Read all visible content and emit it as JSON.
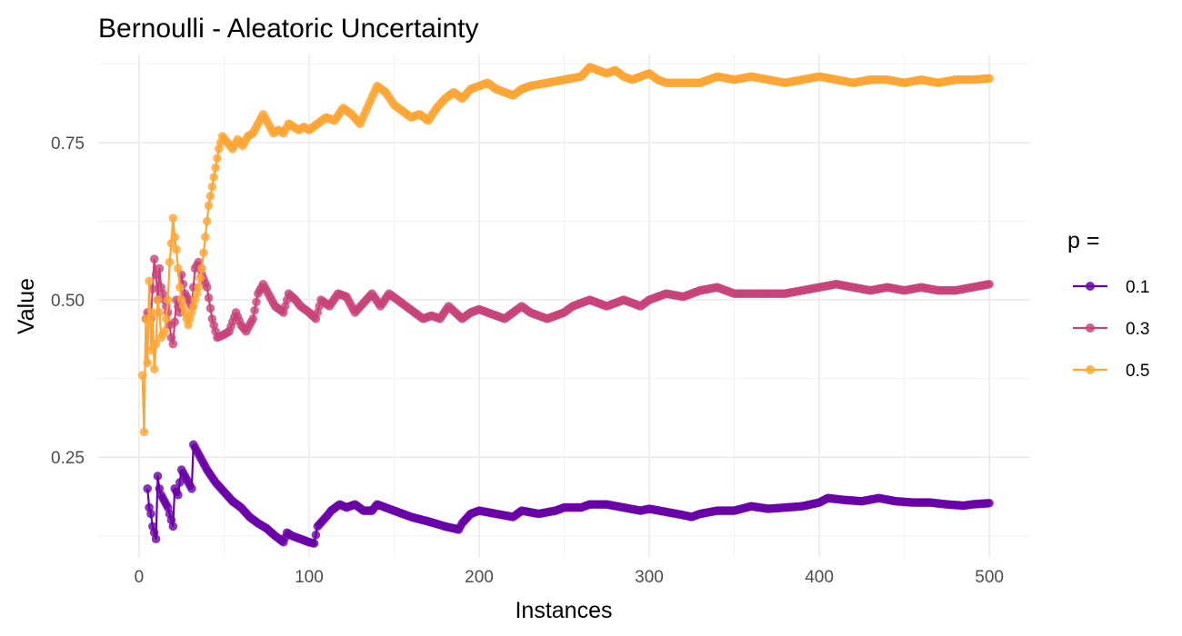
{
  "chart_data": {
    "type": "line",
    "title": "Bernoulli - Aleatoric Uncertainty",
    "xlabel": "Instances",
    "ylabel": "Value",
    "xlim": [
      -24,
      524
    ],
    "ylim": [
      0.09,
      0.89
    ],
    "x_ticks": [
      0,
      100,
      200,
      300,
      400,
      500
    ],
    "x_tick_labels": [
      "0",
      "100",
      "200",
      "300",
      "400",
      "500"
    ],
    "y_ticks": [
      0.25,
      0.5,
      0.75
    ],
    "y_tick_labels": [
      "0.25",
      "0.50",
      "0.75"
    ],
    "grid": true,
    "legend": {
      "title": "p =",
      "placement": "right"
    },
    "series": [
      {
        "name": "0.1",
        "color": "#6a00a8",
        "points": [
          [
            5,
            0.2
          ],
          [
            6,
            0.17
          ],
          [
            7,
            0.16
          ],
          [
            8,
            0.14
          ],
          [
            9,
            0.13
          ],
          [
            10,
            0.12
          ],
          [
            11,
            0.22
          ],
          [
            12,
            0.2
          ],
          [
            13,
            0.19
          ],
          [
            15,
            0.18
          ],
          [
            17,
            0.17
          ],
          [
            18,
            0.16
          ],
          [
            19,
            0.15
          ],
          [
            20,
            0.14
          ],
          [
            21,
            0.2
          ],
          [
            23,
            0.19
          ],
          [
            25,
            0.23
          ],
          [
            27,
            0.22
          ],
          [
            29,
            0.21
          ],
          [
            31,
            0.2
          ],
          [
            32,
            0.27
          ],
          [
            34,
            0.26
          ],
          [
            36,
            0.25
          ],
          [
            40,
            0.23
          ],
          [
            45,
            0.21
          ],
          [
            50,
            0.195
          ],
          [
            55,
            0.18
          ],
          [
            60,
            0.17
          ],
          [
            65,
            0.155
          ],
          [
            70,
            0.145
          ],
          [
            75,
            0.137
          ],
          [
            80,
            0.125
          ],
          [
            85,
            0.115
          ],
          [
            87,
            0.13
          ],
          [
            90,
            0.125
          ],
          [
            95,
            0.12
          ],
          [
            100,
            0.115
          ],
          [
            103,
            0.113
          ],
          [
            105,
            0.14
          ],
          [
            110,
            0.155
          ],
          [
            113,
            0.165
          ],
          [
            118,
            0.175
          ],
          [
            122,
            0.17
          ],
          [
            127,
            0.175
          ],
          [
            132,
            0.165
          ],
          [
            137,
            0.165
          ],
          [
            140,
            0.175
          ],
          [
            150,
            0.165
          ],
          [
            160,
            0.155
          ],
          [
            170,
            0.148
          ],
          [
            180,
            0.14
          ],
          [
            188,
            0.135
          ],
          [
            190,
            0.145
          ],
          [
            195,
            0.16
          ],
          [
            200,
            0.165
          ],
          [
            210,
            0.16
          ],
          [
            220,
            0.155
          ],
          [
            225,
            0.165
          ],
          [
            235,
            0.16
          ],
          [
            245,
            0.165
          ],
          [
            250,
            0.17
          ],
          [
            260,
            0.17
          ],
          [
            265,
            0.175
          ],
          [
            275,
            0.175
          ],
          [
            285,
            0.17
          ],
          [
            295,
            0.165
          ],
          [
            300,
            0.168
          ],
          [
            310,
            0.163
          ],
          [
            320,
            0.158
          ],
          [
            325,
            0.155
          ],
          [
            330,
            0.16
          ],
          [
            340,
            0.165
          ],
          [
            350,
            0.165
          ],
          [
            360,
            0.172
          ],
          [
            370,
            0.168
          ],
          [
            380,
            0.17
          ],
          [
            390,
            0.172
          ],
          [
            400,
            0.178
          ],
          [
            405,
            0.185
          ],
          [
            415,
            0.182
          ],
          [
            425,
            0.18
          ],
          [
            435,
            0.185
          ],
          [
            445,
            0.18
          ],
          [
            455,
            0.178
          ],
          [
            465,
            0.178
          ],
          [
            475,
            0.175
          ],
          [
            485,
            0.173
          ],
          [
            490,
            0.175
          ],
          [
            500,
            0.177
          ]
        ]
      },
      {
        "name": "0.3",
        "color": "#c8437a",
        "points": [
          [
            4,
            0.47
          ],
          [
            5,
            0.48
          ],
          [
            7,
            0.47
          ],
          [
            9,
            0.565
          ],
          [
            10,
            0.54
          ],
          [
            11,
            0.5
          ],
          [
            12,
            0.55
          ],
          [
            13,
            0.52
          ],
          [
            15,
            0.5
          ],
          [
            17,
            0.48
          ],
          [
            19,
            0.44
          ],
          [
            20,
            0.43
          ],
          [
            22,
            0.5
          ],
          [
            24,
            0.48
          ],
          [
            25,
            0.54
          ],
          [
            27,
            0.51
          ],
          [
            29,
            0.5
          ],
          [
            31,
            0.49
          ],
          [
            33,
            0.55
          ],
          [
            35,
            0.56
          ],
          [
            37,
            0.54
          ],
          [
            40,
            0.52
          ],
          [
            43,
            0.47
          ],
          [
            46,
            0.44
          ],
          [
            50,
            0.445
          ],
          [
            53,
            0.45
          ],
          [
            57,
            0.48
          ],
          [
            60,
            0.46
          ],
          [
            63,
            0.45
          ],
          [
            67,
            0.47
          ],
          [
            70,
            0.51
          ],
          [
            73,
            0.525
          ],
          [
            76,
            0.51
          ],
          [
            80,
            0.49
          ],
          [
            85,
            0.48
          ],
          [
            88,
            0.51
          ],
          [
            92,
            0.5
          ],
          [
            95,
            0.49
          ],
          [
            100,
            0.48
          ],
          [
            104,
            0.47
          ],
          [
            107,
            0.5
          ],
          [
            112,
            0.49
          ],
          [
            117,
            0.51
          ],
          [
            122,
            0.505
          ],
          [
            127,
            0.48
          ],
          [
            132,
            0.495
          ],
          [
            137,
            0.51
          ],
          [
            142,
            0.49
          ],
          [
            147,
            0.51
          ],
          [
            152,
            0.5
          ],
          [
            157,
            0.49
          ],
          [
            162,
            0.48
          ],
          [
            167,
            0.47
          ],
          [
            172,
            0.475
          ],
          [
            177,
            0.47
          ],
          [
            182,
            0.49
          ],
          [
            190,
            0.47
          ],
          [
            195,
            0.48
          ],
          [
            200,
            0.485
          ],
          [
            205,
            0.48
          ],
          [
            210,
            0.475
          ],
          [
            215,
            0.47
          ],
          [
            220,
            0.48
          ],
          [
            225,
            0.49
          ],
          [
            230,
            0.48
          ],
          [
            240,
            0.47
          ],
          [
            250,
            0.48
          ],
          [
            255,
            0.49
          ],
          [
            265,
            0.5
          ],
          [
            275,
            0.49
          ],
          [
            285,
            0.5
          ],
          [
            295,
            0.49
          ],
          [
            300,
            0.5
          ],
          [
            310,
            0.51
          ],
          [
            320,
            0.505
          ],
          [
            330,
            0.515
          ],
          [
            340,
            0.52
          ],
          [
            350,
            0.51
          ],
          [
            360,
            0.51
          ],
          [
            370,
            0.51
          ],
          [
            380,
            0.51
          ],
          [
            390,
            0.515
          ],
          [
            400,
            0.52
          ],
          [
            410,
            0.525
          ],
          [
            420,
            0.52
          ],
          [
            430,
            0.515
          ],
          [
            440,
            0.52
          ],
          [
            450,
            0.515
          ],
          [
            460,
            0.52
          ],
          [
            470,
            0.515
          ],
          [
            480,
            0.515
          ],
          [
            490,
            0.52
          ],
          [
            500,
            0.525
          ]
        ]
      },
      {
        "name": "0.5",
        "color": "#fca636",
        "points": [
          [
            2,
            0.38
          ],
          [
            3,
            0.29
          ],
          [
            4,
            0.47
          ],
          [
            5,
            0.4
          ],
          [
            6,
            0.53
          ],
          [
            7,
            0.42
          ],
          [
            8,
            0.48
          ],
          [
            9,
            0.39
          ],
          [
            10,
            0.43
          ],
          [
            11,
            0.5
          ],
          [
            12,
            0.48
          ],
          [
            13,
            0.44
          ],
          [
            15,
            0.45
          ],
          [
            16,
            0.47
          ],
          [
            17,
            0.5
          ],
          [
            18,
            0.56
          ],
          [
            19,
            0.59
          ],
          [
            20,
            0.63
          ],
          [
            21,
            0.6
          ],
          [
            22,
            0.58
          ],
          [
            23,
            0.55
          ],
          [
            24,
            0.52
          ],
          [
            25,
            0.5
          ],
          [
            27,
            0.48
          ],
          [
            29,
            0.46
          ],
          [
            31,
            0.48
          ],
          [
            33,
            0.5
          ],
          [
            35,
            0.52
          ],
          [
            37,
            0.55
          ],
          [
            39,
            0.6
          ],
          [
            41,
            0.65
          ],
          [
            43,
            0.68
          ],
          [
            45,
            0.71
          ],
          [
            47,
            0.74
          ],
          [
            49,
            0.76
          ],
          [
            52,
            0.75
          ],
          [
            55,
            0.74
          ],
          [
            58,
            0.755
          ],
          [
            61,
            0.745
          ],
          [
            64,
            0.76
          ],
          [
            67,
            0.765
          ],
          [
            70,
            0.78
          ],
          [
            73,
            0.795
          ],
          [
            76,
            0.78
          ],
          [
            79,
            0.765
          ],
          [
            82,
            0.77
          ],
          [
            85,
            0.765
          ],
          [
            88,
            0.78
          ],
          [
            91,
            0.775
          ],
          [
            94,
            0.77
          ],
          [
            97,
            0.775
          ],
          [
            100,
            0.77
          ],
          [
            105,
            0.78
          ],
          [
            110,
            0.79
          ],
          [
            115,
            0.785
          ],
          [
            120,
            0.805
          ],
          [
            125,
            0.795
          ],
          [
            130,
            0.78
          ],
          [
            135,
            0.81
          ],
          [
            140,
            0.84
          ],
          [
            145,
            0.83
          ],
          [
            150,
            0.81
          ],
          [
            155,
            0.8
          ],
          [
            160,
            0.79
          ],
          [
            165,
            0.795
          ],
          [
            170,
            0.785
          ],
          [
            175,
            0.805
          ],
          [
            180,
            0.82
          ],
          [
            185,
            0.83
          ],
          [
            190,
            0.82
          ],
          [
            195,
            0.835
          ],
          [
            200,
            0.84
          ],
          [
            205,
            0.845
          ],
          [
            210,
            0.835
          ],
          [
            215,
            0.83
          ],
          [
            220,
            0.825
          ],
          [
            225,
            0.835
          ],
          [
            230,
            0.84
          ],
          [
            240,
            0.845
          ],
          [
            250,
            0.85
          ],
          [
            260,
            0.855
          ],
          [
            265,
            0.87
          ],
          [
            270,
            0.865
          ],
          [
            275,
            0.86
          ],
          [
            280,
            0.865
          ],
          [
            285,
            0.855
          ],
          [
            290,
            0.85
          ],
          [
            295,
            0.855
          ],
          [
            300,
            0.86
          ],
          [
            305,
            0.85
          ],
          [
            310,
            0.845
          ],
          [
            320,
            0.845
          ],
          [
            330,
            0.845
          ],
          [
            340,
            0.855
          ],
          [
            350,
            0.85
          ],
          [
            360,
            0.855
          ],
          [
            370,
            0.85
          ],
          [
            380,
            0.845
          ],
          [
            390,
            0.85
          ],
          [
            400,
            0.855
          ],
          [
            410,
            0.85
          ],
          [
            420,
            0.845
          ],
          [
            430,
            0.85
          ],
          [
            440,
            0.85
          ],
          [
            450,
            0.845
          ],
          [
            460,
            0.85
          ],
          [
            470,
            0.845
          ],
          [
            480,
            0.85
          ],
          [
            490,
            0.85
          ],
          [
            500,
            0.852
          ]
        ]
      }
    ]
  }
}
